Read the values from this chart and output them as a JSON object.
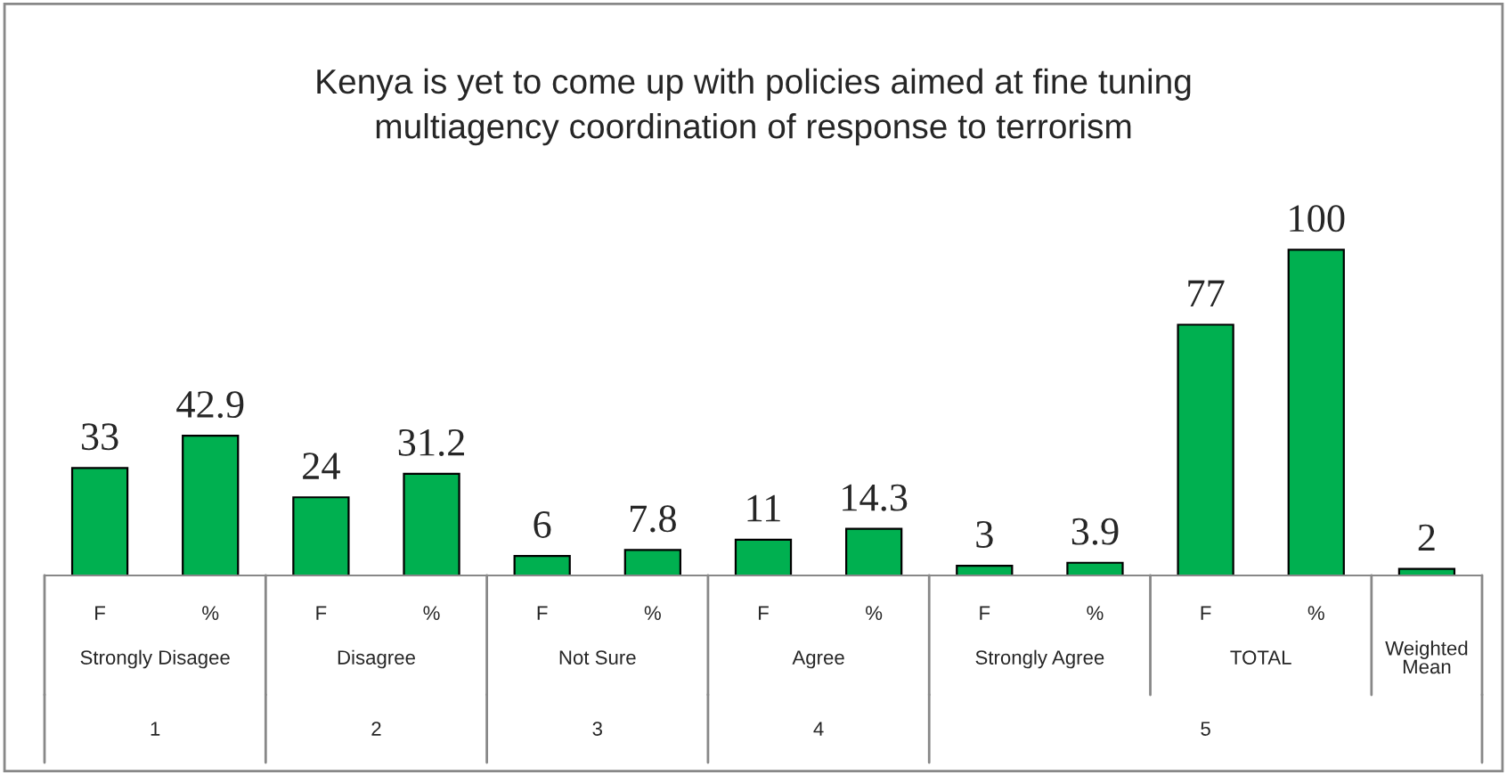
{
  "chart_data": {
    "type": "bar",
    "title": "Kenya is yet to come up with policies aimed at fine tuning\nmultiagency coordination of response to terrorism",
    "categories": [
      "F",
      "%",
      "F",
      "%",
      "F",
      "%",
      "F",
      "%",
      "F",
      "%",
      "F",
      "%",
      null
    ],
    "values": [
      33,
      42.9,
      24,
      31.2,
      6,
      7.8,
      11,
      14.3,
      3,
      3.9,
      77,
      100,
      2
    ],
    "color": "#00b050",
    "data_labels": true,
    "annotations": [
      "Strongly Disagee",
      "Disagree",
      "Not Sure",
      "Agree",
      "Strongly Agree",
      "TOTAL",
      "Weighted\nMean",
      "1",
      "2",
      "3",
      "4",
      "5"
    ]
  }
}
